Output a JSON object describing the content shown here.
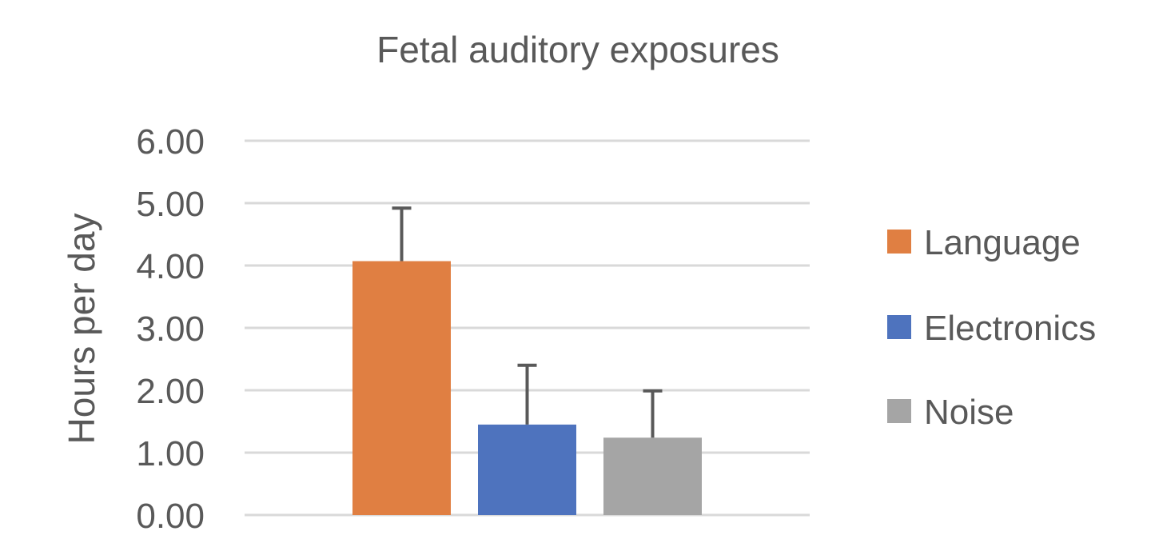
{
  "chart_data": {
    "type": "bar",
    "title": "Fetal auditory exposures",
    "xlabel": "",
    "ylabel": "Hours per day",
    "ylim": [
      0,
      6
    ],
    "yticks": [
      "0.00",
      "1.00",
      "2.00",
      "3.00",
      "4.00",
      "5.00",
      "6.00"
    ],
    "grid": true,
    "legend_position": "right",
    "series": [
      {
        "name": "Language",
        "value": 4.07,
        "error_plus": 0.85,
        "color": "#E07F42"
      },
      {
        "name": "Electronics",
        "value": 1.45,
        "error_plus": 0.95,
        "color": "#4E73BE"
      },
      {
        "name": "Noise",
        "value": 1.24,
        "error_plus": 0.75,
        "color": "#A5A5A5"
      }
    ]
  }
}
